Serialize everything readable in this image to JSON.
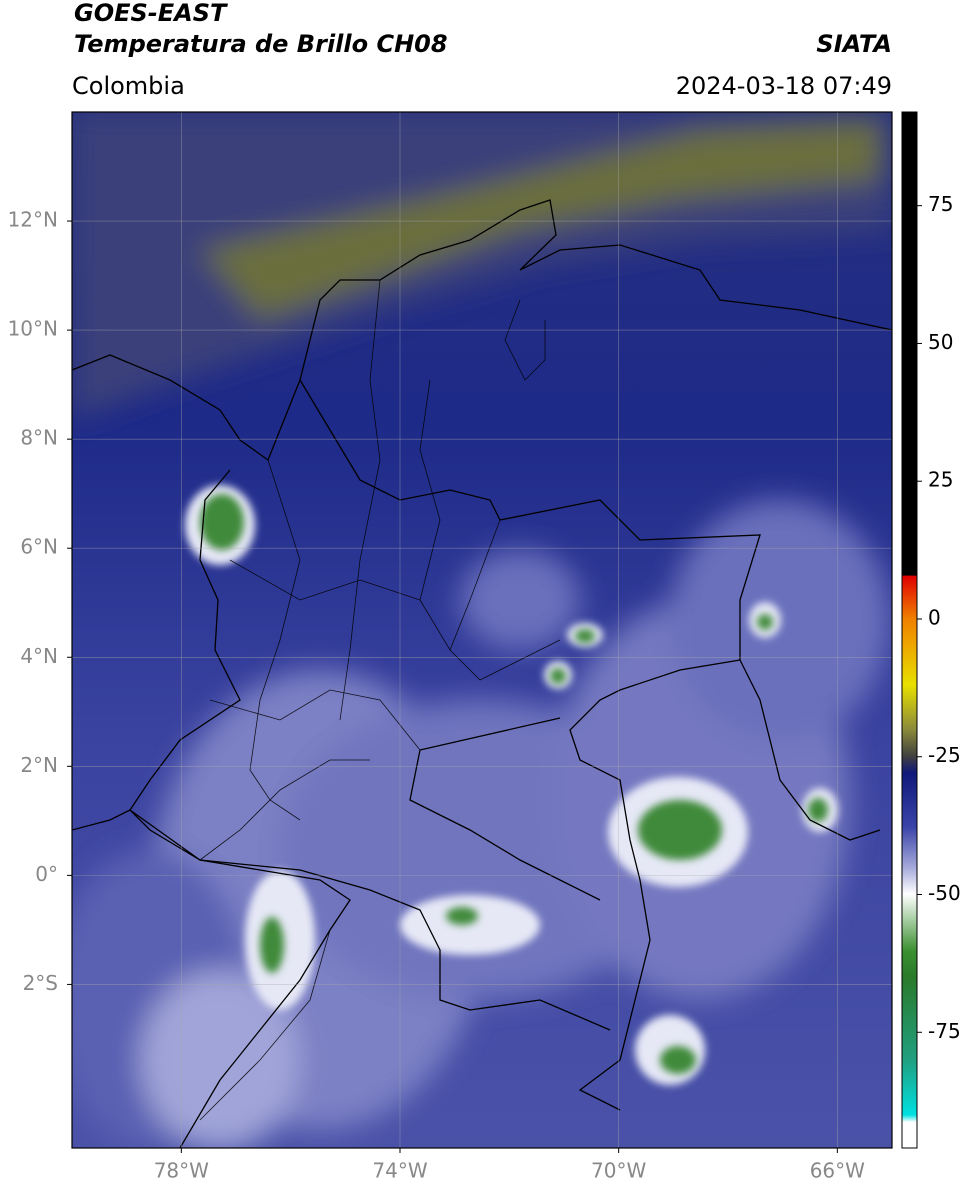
{
  "header": {
    "title_line1": "GOES-EAST",
    "title_line2": "Temperatura de Brillo CH08",
    "source": "SIATA",
    "region": "Colombia",
    "datetime": "2024-03-18 07:49"
  },
  "map": {
    "lonlim": [
      -80,
      -65
    ],
    "latlim": [
      -5,
      14
    ],
    "lon_ticks": [
      {
        "value": -78,
        "label": "78°W"
      },
      {
        "value": -74,
        "label": "74°W"
      },
      {
        "value": -70,
        "label": "70°W"
      },
      {
        "value": -66,
        "label": "66°W"
      }
    ],
    "lat_ticks": [
      {
        "value": 12,
        "label": "12°N"
      },
      {
        "value": 10,
        "label": "10°N"
      },
      {
        "value": 8,
        "label": "8°N"
      },
      {
        "value": 6,
        "label": "6°N"
      },
      {
        "value": 4,
        "label": "4°N"
      },
      {
        "value": 2,
        "label": "2°N"
      },
      {
        "value": 0,
        "label": "0°"
      },
      {
        "value": -2,
        "label": "2°S"
      }
    ],
    "grid": true
  },
  "colorbar": {
    "lim": [
      -96,
      92
    ],
    "ticks": [
      75,
      50,
      25,
      0,
      -25,
      -50,
      -75
    ]
  }
}
